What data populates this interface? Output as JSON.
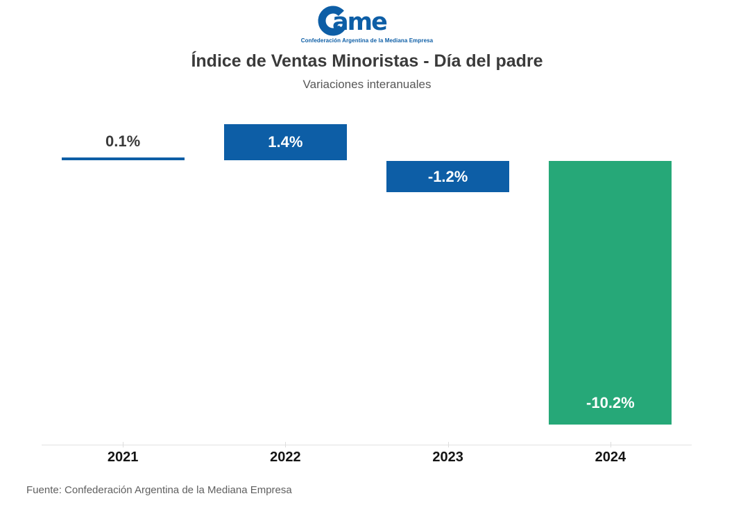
{
  "header": {
    "logo_text": "Came",
    "logo_tagline": "Confederación Argentina de la Mediana Empresa"
  },
  "title": "Índice de Ventas Minoristas - Día del padre",
  "subtitle": "Variaciones interanuales",
  "chart_data": {
    "type": "bar",
    "categories": [
      "2021",
      "2022",
      "2023",
      "2024"
    ],
    "values": [
      0.1,
      1.4,
      -1.2,
      -10.2
    ],
    "value_labels": [
      "0.1%",
      "1.4%",
      "-1.2%",
      "-10.2%"
    ],
    "bar_colors": [
      "#0d5ea6",
      "#0d5ea6",
      "#0d5ea6",
      "#26a878"
    ],
    "value_label_colors": [
      "#3a3a3a",
      "#ffffff",
      "#ffffff",
      "#ffffff"
    ],
    "title": "Índice de Ventas Minoristas - Día del padre",
    "subtitle": "Variaciones interanuales",
    "xlabel": "",
    "ylabel": "",
    "ylim": [
      -11,
      2
    ],
    "grid": false,
    "legend": false,
    "baseline": 0
  },
  "footer": {
    "source": "Fuente: Confederación Argentina de la Mediana Empresa"
  },
  "colors": {
    "blue": "#0d5ea6",
    "green": "#26a878",
    "axis_line": "#e2e2e2",
    "title_text": "#3a3a3a",
    "year_text": "#141414"
  }
}
